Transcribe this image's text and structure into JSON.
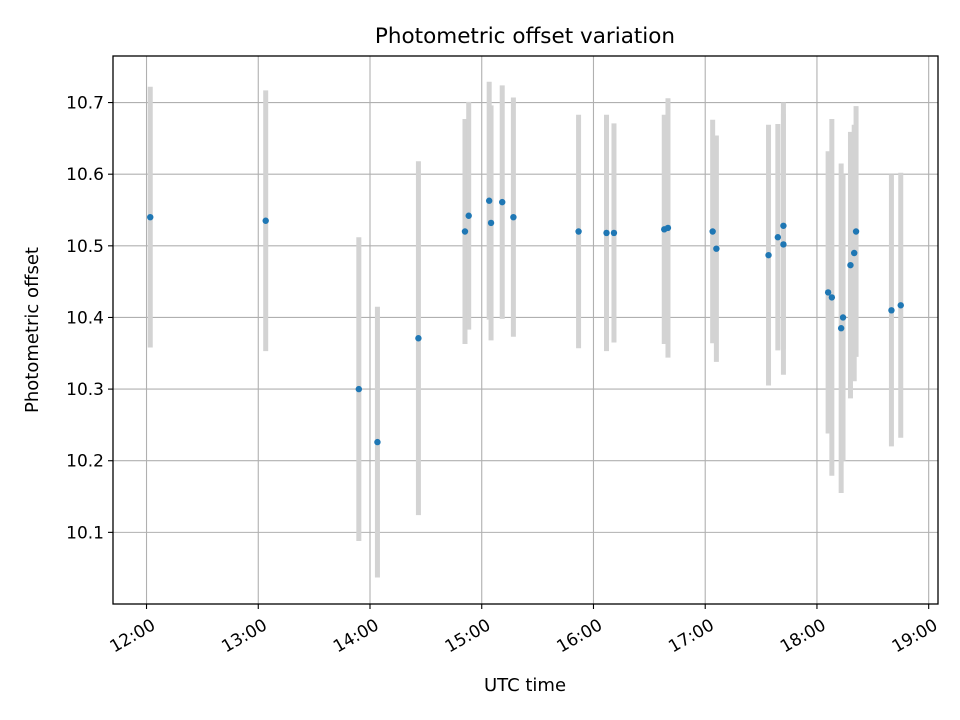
{
  "chart_data": {
    "type": "scatter",
    "title": "Photometric offset variation",
    "xlabel": "UTC time",
    "ylabel": "Photometric offset",
    "xlim": [
      "11:42",
      "19:05"
    ],
    "ylim": [
      10.0,
      10.765
    ],
    "xticks": [
      "12:00",
      "13:00",
      "14:00",
      "15:00",
      "16:00",
      "17:00",
      "18:00",
      "19:00"
    ],
    "yticks": [
      10.1,
      10.2,
      10.3,
      10.4,
      10.5,
      10.6,
      10.7
    ],
    "grid": true,
    "error_bars": true,
    "colors": {
      "point": "#1f77b4",
      "error_bar": "#d3d3d3",
      "grid": "#b0b0b0"
    },
    "points": [
      {
        "x": "12:02",
        "y": 10.54,
        "err": 0.182
      },
      {
        "x": "13:04",
        "y": 10.535,
        "err": 0.182
      },
      {
        "x": "13:54",
        "y": 10.3,
        "err": 0.212
      },
      {
        "x": "14:04",
        "y": 10.226,
        "err": 0.189
      },
      {
        "x": "14:26",
        "y": 10.371,
        "err": 0.247
      },
      {
        "x": "14:51",
        "y": 10.52,
        "err": 0.157
      },
      {
        "x": "14:53",
        "y": 10.542,
        "err": 0.159
      },
      {
        "x": "15:04",
        "y": 10.563,
        "err": 0.166
      },
      {
        "x": "15:05",
        "y": 10.532,
        "err": 0.164
      },
      {
        "x": "15:11",
        "y": 10.561,
        "err": 0.163
      },
      {
        "x": "15:17",
        "y": 10.54,
        "err": 0.167
      },
      {
        "x": "15:52",
        "y": 10.52,
        "err": 0.163
      },
      {
        "x": "16:07",
        "y": 10.518,
        "err": 0.165
      },
      {
        "x": "16:11",
        "y": 10.518,
        "err": 0.153
      },
      {
        "x": "16:38",
        "y": 10.523,
        "err": 0.16
      },
      {
        "x": "16:40",
        "y": 10.525,
        "err": 0.181
      },
      {
        "x": "17:04",
        "y": 10.52,
        "err": 0.156
      },
      {
        "x": "17:06",
        "y": 10.496,
        "err": 0.158
      },
      {
        "x": "17:34",
        "y": 10.487,
        "err": 0.182
      },
      {
        "x": "17:39",
        "y": 10.512,
        "err": 0.158
      },
      {
        "x": "17:42",
        "y": 10.528,
        "err": 0.172
      },
      {
        "x": "17:42",
        "y": 10.502,
        "err": 0.182
      },
      {
        "x": "18:06",
        "y": 10.435,
        "err": 0.197
      },
      {
        "x": "18:08",
        "y": 10.428,
        "err": 0.249
      },
      {
        "x": "18:13",
        "y": 10.385,
        "err": 0.23
      },
      {
        "x": "18:14",
        "y": 10.4,
        "err": 0.2
      },
      {
        "x": "18:18",
        "y": 10.473,
        "err": 0.186
      },
      {
        "x": "18:20",
        "y": 10.49,
        "err": 0.179
      },
      {
        "x": "18:21",
        "y": 10.52,
        "err": 0.175
      },
      {
        "x": "18:40",
        "y": 10.41,
        "err": 0.19
      },
      {
        "x": "18:45",
        "y": 10.417,
        "err": 0.185
      }
    ]
  }
}
